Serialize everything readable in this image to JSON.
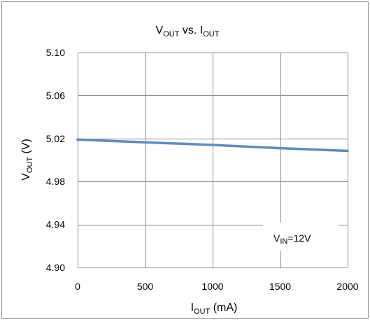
{
  "chart_data": {
    "type": "line",
    "title": {
      "main": "V",
      "main_sub": "OUT",
      "joiner": " vs. ",
      "second": "I",
      "second_sub": "OUT"
    },
    "xlabel": {
      "main": "I",
      "sub": "OUT",
      "unit": " (mA)"
    },
    "ylabel": {
      "main": "V",
      "sub": "OUT",
      "unit": " (V)"
    },
    "xlim": [
      0,
      2000
    ],
    "ylim": [
      4.9,
      5.1
    ],
    "x_ticks": [
      0,
      500,
      1000,
      1500,
      2000
    ],
    "y_ticks": [
      4.9,
      4.94,
      4.98,
      5.02,
      5.06,
      5.1
    ],
    "x_tick_labels": [
      "0",
      "500",
      "1000",
      "1500",
      "2000"
    ],
    "y_tick_labels": [
      "4.90",
      "4.94",
      "4.98",
      "5.02",
      "5.06",
      "5.10"
    ],
    "grid": true,
    "series": [
      {
        "color": "#5b8bc7",
        "x": [
          0,
          500,
          1000,
          1500,
          2000
        ],
        "y": [
          5.019,
          5.0165,
          5.014,
          5.011,
          5.0085
        ]
      }
    ],
    "annotation": {
      "main": "V",
      "sub": "IN",
      "rest": "=12V"
    }
  }
}
